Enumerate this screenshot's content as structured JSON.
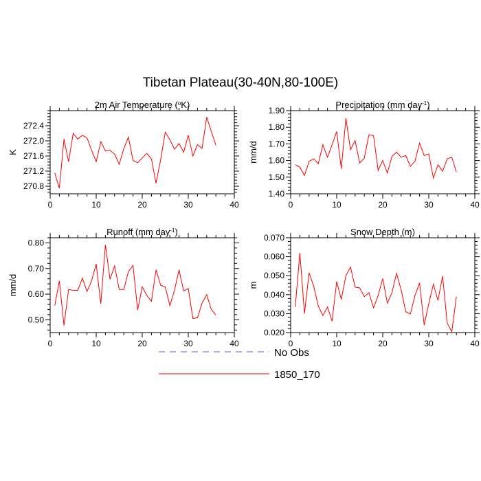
{
  "title": "Tibetan Plateau(30-40N,80-100E)",
  "colors": {
    "model": "#ff0000",
    "obs": "#5c5cff",
    "axis": "#000000"
  },
  "legend": [
    {
      "label": "No Obs",
      "color": "#5c5cff",
      "style": "dashed"
    },
    {
      "label": "1850_170",
      "color": "#ff0000",
      "style": "solid"
    }
  ],
  "chart_data": [
    {
      "type": "line",
      "title": "2m Air Temperature (°K)",
      "title_main": "2m Air Temperature (",
      "title_sup": "o",
      "title_tail": "K)",
      "ylabel": "K",
      "xlim": [
        0,
        40
      ],
      "ylim": [
        270.6,
        272.8
      ],
      "xticks": [
        0,
        10,
        20,
        30,
        40
      ],
      "yticks": [
        270.8,
        271.2,
        271.6,
        272.0,
        272.4
      ],
      "ytick_labels": [
        "270.8",
        "271.2",
        "271.6",
        "272.0",
        "272.4"
      ],
      "series": [
        {
          "x": [
            1,
            2,
            3,
            4,
            5,
            6,
            7,
            8,
            9,
            10,
            11,
            12,
            13,
            14,
            15,
            16,
            17,
            18,
            19,
            20,
            21,
            22,
            23,
            24,
            25,
            26,
            27,
            28,
            29,
            30,
            31,
            32,
            33,
            34,
            35,
            36
          ],
          "values": [
            271.15,
            270.75,
            272.05,
            271.45,
            272.2,
            272.05,
            272.15,
            272.08,
            271.75,
            271.45,
            271.98,
            271.73,
            271.75,
            271.65,
            271.38,
            271.8,
            272.1,
            271.48,
            271.42,
            271.55,
            271.67,
            271.52,
            270.88,
            271.5,
            272.23,
            272.03,
            271.78,
            271.93,
            271.7,
            272.15,
            271.6,
            271.9,
            271.8,
            272.63,
            272.25,
            271.88
          ]
        }
      ]
    },
    {
      "type": "line",
      "title": "Precipitation (mm day-1)",
      "title_main": "Precipitation (mm day",
      "title_sup": "-1",
      "title_tail": ")",
      "ylabel": "mm/d",
      "xlim": [
        0,
        40
      ],
      "ylim": [
        1.4,
        1.9
      ],
      "xticks": [
        0,
        10,
        20,
        30,
        40
      ],
      "yticks": [
        1.4,
        1.5,
        1.6,
        1.7,
        1.8,
        1.9
      ],
      "ytick_labels": [
        "1.40",
        "1.50",
        "1.60",
        "1.70",
        "1.80",
        "1.90"
      ],
      "series": [
        {
          "x": [
            1,
            2,
            3,
            4,
            5,
            6,
            7,
            8,
            9,
            10,
            11,
            12,
            13,
            14,
            15,
            16,
            17,
            18,
            19,
            20,
            21,
            22,
            23,
            24,
            25,
            26,
            27,
            28,
            29,
            30,
            31,
            32,
            33,
            34,
            35,
            36
          ],
          "values": [
            1.575,
            1.56,
            1.51,
            1.595,
            1.61,
            1.58,
            1.695,
            1.62,
            1.695,
            1.775,
            1.55,
            1.855,
            1.665,
            1.72,
            1.585,
            1.615,
            1.755,
            1.75,
            1.54,
            1.6,
            1.525,
            1.625,
            1.65,
            1.62,
            1.63,
            1.565,
            1.595,
            1.705,
            1.63,
            1.64,
            1.495,
            1.575,
            1.535,
            1.61,
            1.62,
            1.53
          ]
        }
      ]
    },
    {
      "type": "line",
      "title": "Runoff (mm day-1)",
      "title_main": "Runoff (mm day",
      "title_sup": "-1",
      "title_tail": ")",
      "ylabel": "mm/d",
      "xlim": [
        0,
        40
      ],
      "ylim": [
        0.45,
        0.82
      ],
      "xticks": [
        0,
        10,
        20,
        30,
        40
      ],
      "yticks": [
        0.5,
        0.6,
        0.7,
        0.8
      ],
      "ytick_labels": [
        "0.50",
        "0.60",
        "0.70",
        "0.80"
      ],
      "series": [
        {
          "x": [
            1,
            2,
            3,
            4,
            5,
            6,
            7,
            8,
            9,
            10,
            11,
            12,
            13,
            14,
            15,
            16,
            17,
            18,
            19,
            20,
            21,
            22,
            23,
            24,
            25,
            26,
            27,
            28,
            29,
            30,
            31,
            32,
            33,
            34,
            35,
            36
          ],
          "values": [
            0.555,
            0.652,
            0.478,
            0.618,
            0.615,
            0.615,
            0.662,
            0.61,
            0.652,
            0.718,
            0.562,
            0.792,
            0.658,
            0.71,
            0.618,
            0.618,
            0.688,
            0.712,
            0.538,
            0.628,
            0.595,
            0.572,
            0.695,
            0.635,
            0.628,
            0.555,
            0.615,
            0.695,
            0.612,
            0.622,
            0.505,
            0.508,
            0.565,
            0.598,
            0.54,
            0.518
          ]
        }
      ]
    },
    {
      "type": "line",
      "title": "Snow Depth (m)",
      "title_main": "Snow Depth (m)",
      "title_sup": "",
      "title_tail": "",
      "ylabel": "m",
      "xlim": [
        0,
        40
      ],
      "ylim": [
        0.02,
        0.07
      ],
      "xticks": [
        0,
        10,
        20,
        30,
        40
      ],
      "yticks": [
        0.02,
        0.03,
        0.04,
        0.05,
        0.06,
        0.07
      ],
      "ytick_labels": [
        "0.020",
        "0.030",
        "0.040",
        "0.050",
        "0.060",
        "0.070"
      ],
      "series": [
        {
          "x": [
            1,
            2,
            3,
            4,
            5,
            6,
            7,
            8,
            9,
            10,
            11,
            12,
            13,
            14,
            15,
            16,
            17,
            18,
            19,
            20,
            21,
            22,
            23,
            24,
            25,
            26,
            27,
            28,
            29,
            30,
            31,
            32,
            33,
            34,
            35,
            36
          ],
          "values": [
            0.0335,
            0.062,
            0.03,
            0.0515,
            0.0445,
            0.034,
            0.029,
            0.0335,
            0.026,
            0.047,
            0.0375,
            0.05,
            0.0545,
            0.044,
            0.0435,
            0.039,
            0.041,
            0.033,
            0.0395,
            0.0485,
            0.0355,
            0.041,
            0.0512,
            0.0425,
            0.031,
            0.0298,
            0.0395,
            0.0462,
            0.024,
            0.0352,
            0.0455,
            0.037,
            0.0498,
            0.025,
            0.0205,
            0.039
          ]
        }
      ]
    }
  ]
}
